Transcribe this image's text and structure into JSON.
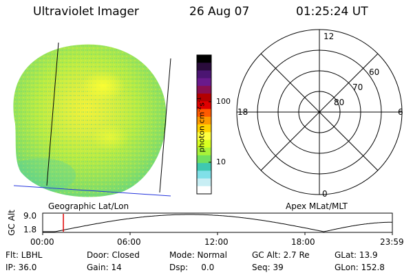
{
  "header": {
    "instrument": "Ultraviolet Imager",
    "date": "26 Aug 07",
    "time": "01:25:24 UT"
  },
  "colorbar": {
    "label": "photon cm",
    "label_sup1": "-2",
    "label_mid": "s",
    "label_sup2": "-1",
    "ticks": [
      "100",
      "10"
    ],
    "colors": [
      "#000000",
      "#2a0c3c",
      "#4b1572",
      "#6a1a8c",
      "#8a0f50",
      "#b30000",
      "#e00000",
      "#ff5a00",
      "#ff9a00",
      "#ffd200",
      "#ffff40",
      "#d8ff20",
      "#a8f23a",
      "#70e060",
      "#40c8b0",
      "#80e0e8",
      "#c8eef4",
      "#ffffff"
    ]
  },
  "polar": {
    "lat_labels": [
      "80",
      "70",
      "60"
    ],
    "mlt_labels": {
      "top": "12",
      "left": "18",
      "right": "6",
      "bottom": "0"
    }
  },
  "coords": {
    "left": "Geographic Lat/Lon",
    "right": "Apex MLat/MLT"
  },
  "altplot": {
    "ylabel": "GC Alt",
    "yticks": [
      "9.0",
      "1.8"
    ],
    "xticks": [
      "00:00",
      "06:00",
      "12:00",
      "18:00",
      "23:59"
    ],
    "current_marker_hours": 1.42
  },
  "info": {
    "row1": [
      "Flt: LBHL",
      "Door: Closed",
      "Mode: Normal",
      "GC Alt: 2.7 Re",
      "GLat:  13.9"
    ],
    "row2": [
      "IP: 36.0",
      "Gain: 14",
      "Dsp:     0.0",
      "Seq: 39",
      "GLon: 152.8"
    ]
  }
}
